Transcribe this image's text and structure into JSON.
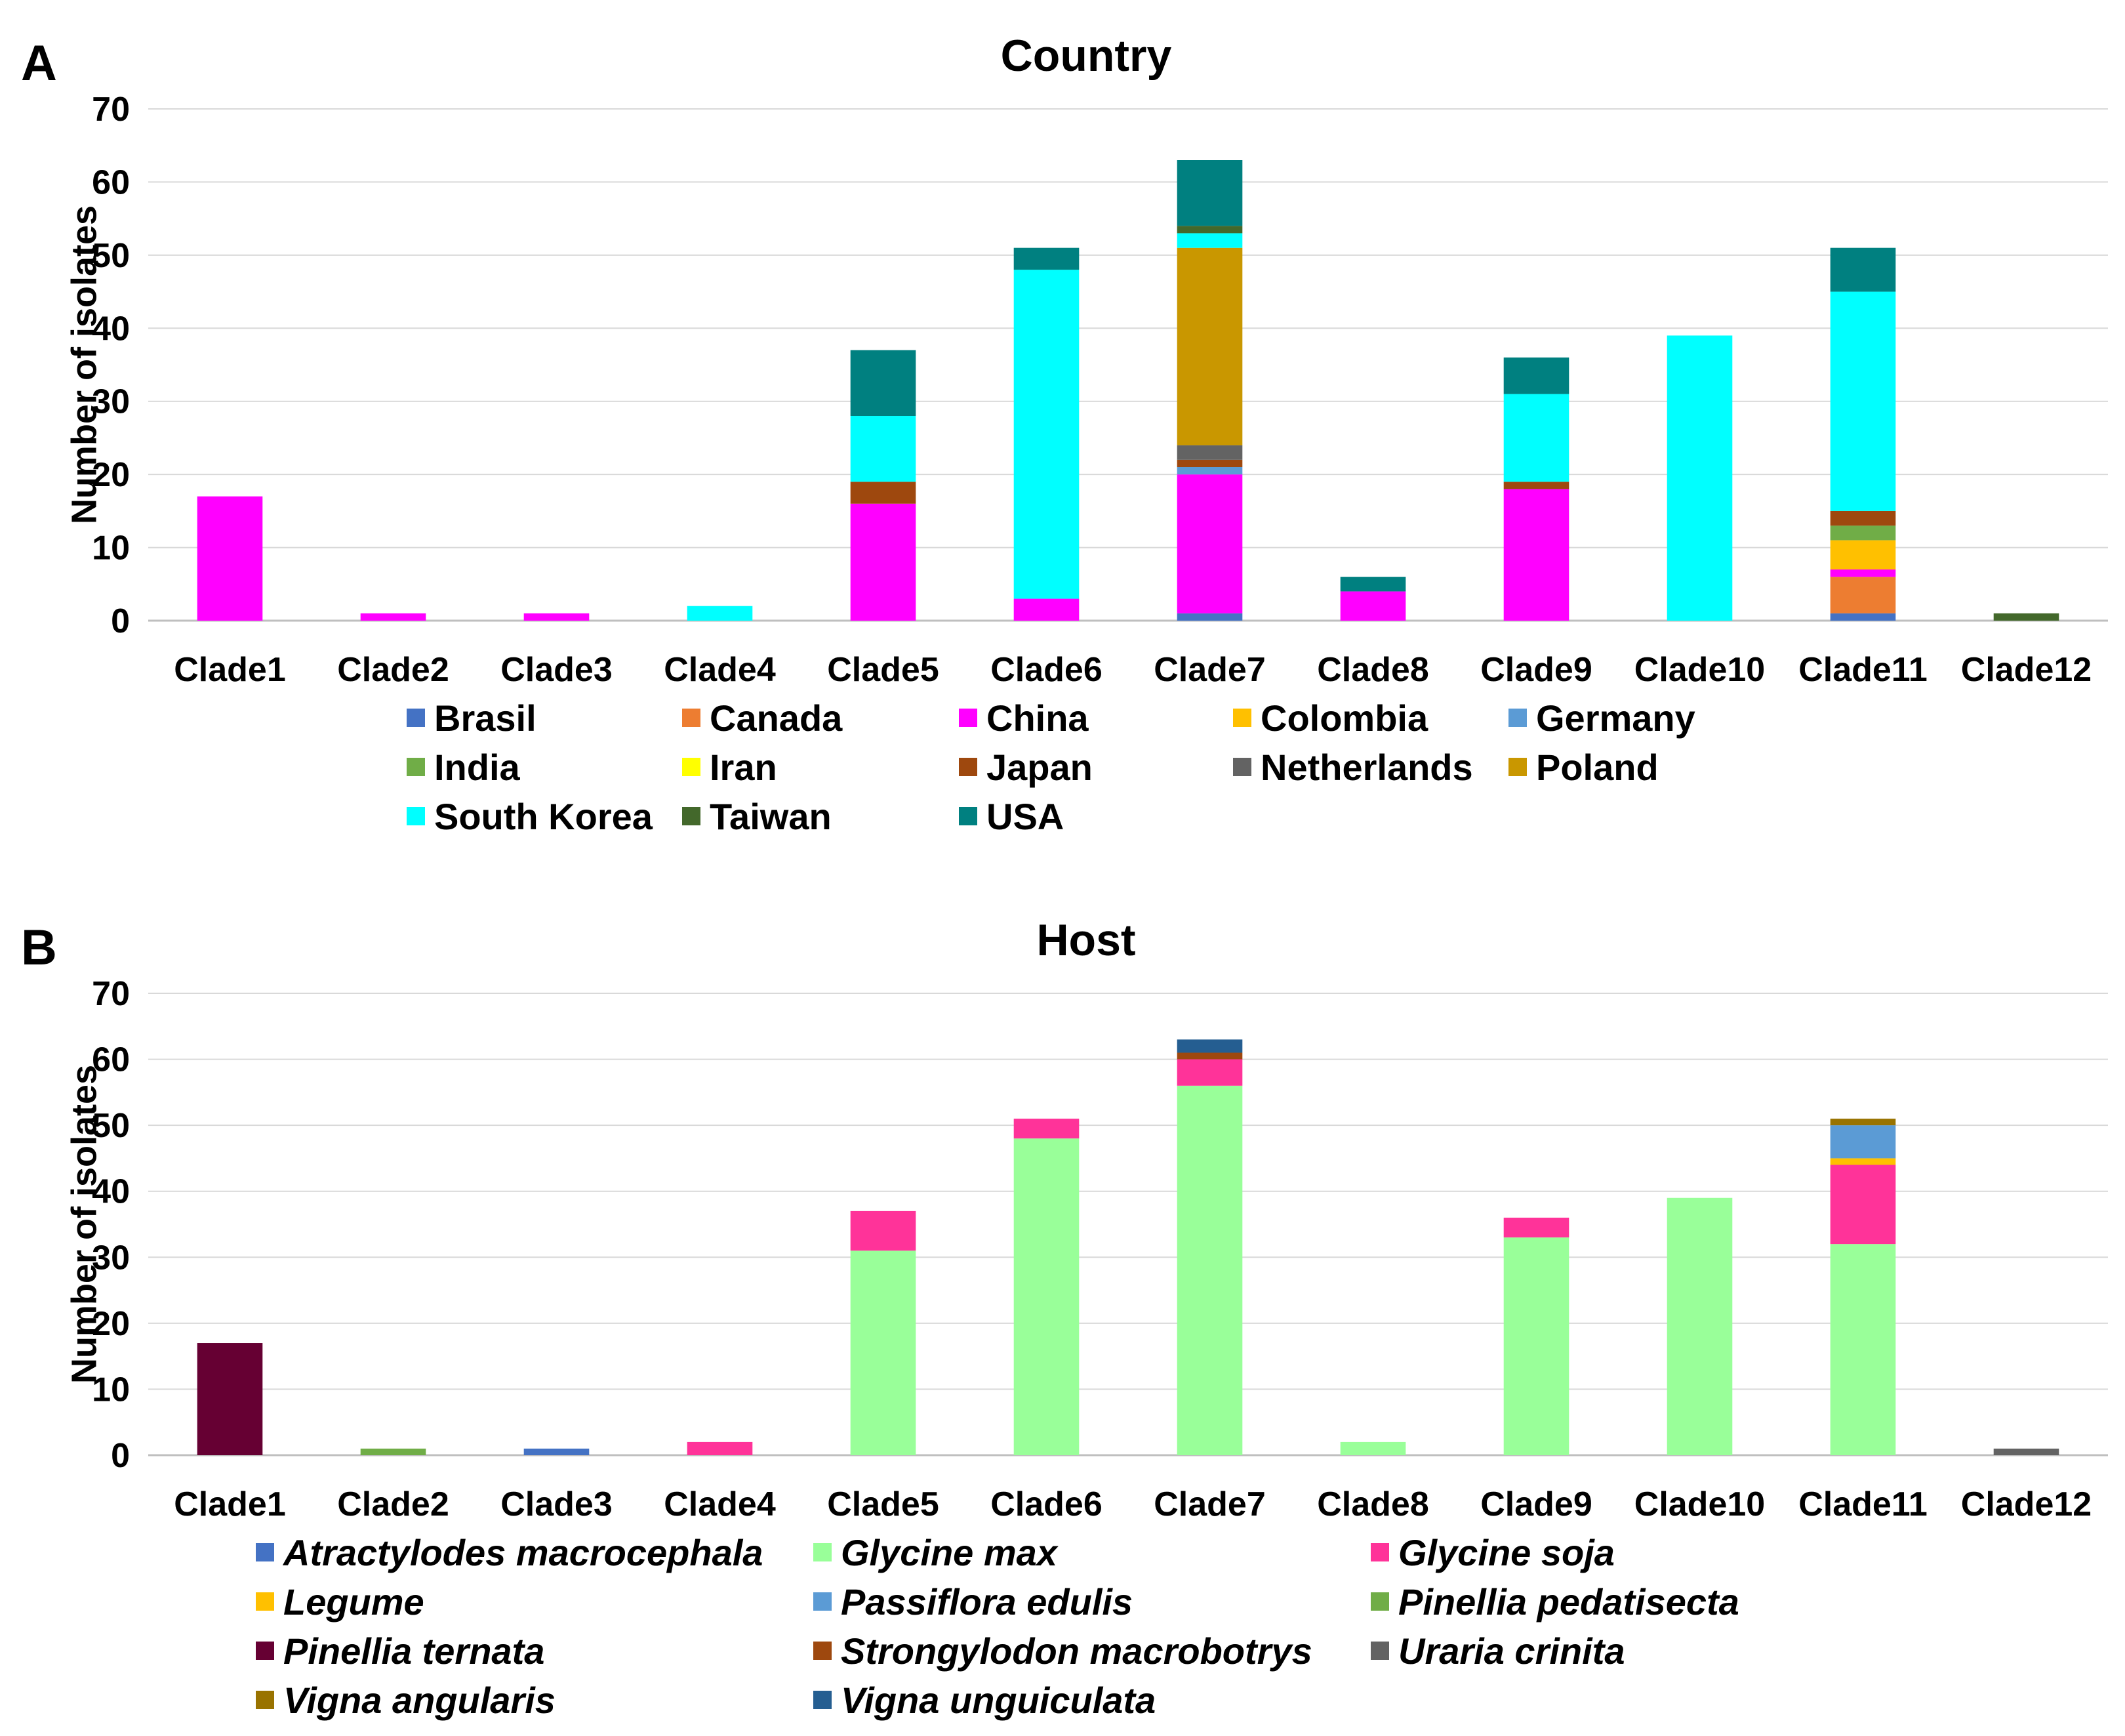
{
  "chart_data": [
    {
      "type": "bar",
      "stacked": true,
      "panel": "A",
      "title": "Country",
      "ylabel": "Number of isolates",
      "xlabel": "",
      "ylim": [
        0,
        70
      ],
      "yticks": [
        0,
        10,
        20,
        30,
        40,
        50,
        60,
        70
      ],
      "grid": true,
      "legend": "bottom",
      "categories": [
        "Clade1",
        "Clade2",
        "Clade3",
        "Clade4",
        "Clade5",
        "Clade6",
        "Clade7",
        "Clade8",
        "Clade9",
        "Clade10",
        "Clade11",
        "Clade12"
      ],
      "series": [
        {
          "name": "Brasil",
          "color": "#4472c4",
          "values": [
            0,
            0,
            0,
            0,
            0,
            0,
            1,
            0,
            0,
            0,
            1,
            0
          ]
        },
        {
          "name": "Canada",
          "color": "#ed7d31",
          "values": [
            0,
            0,
            0,
            0,
            0,
            0,
            0,
            0,
            0,
            0,
            5,
            0
          ]
        },
        {
          "name": "China",
          "color": "#ff00ff",
          "values": [
            17,
            1,
            1,
            0,
            16,
            3,
            19,
            4,
            18,
            0,
            1,
            0
          ]
        },
        {
          "name": "Colombia",
          "color": "#ffc000",
          "values": [
            0,
            0,
            0,
            0,
            0,
            0,
            0,
            0,
            0,
            0,
            4,
            0
          ]
        },
        {
          "name": "Germany",
          "color": "#5b9bd5",
          "values": [
            0,
            0,
            0,
            0,
            0,
            0,
            1,
            0,
            0,
            0,
            0,
            0
          ]
        },
        {
          "name": "India",
          "color": "#70ad47",
          "values": [
            0,
            0,
            0,
            0,
            0,
            0,
            0,
            0,
            0,
            0,
            2,
            0
          ]
        },
        {
          "name": "Iran",
          "color": "#ffff00",
          "values": [
            0,
            0,
            0,
            0,
            0,
            0,
            0,
            0,
            0,
            0,
            0,
            0
          ]
        },
        {
          "name": "Japan",
          "color": "#9e480e",
          "values": [
            0,
            0,
            0,
            0,
            3,
            0,
            1,
            0,
            1,
            0,
            2,
            0
          ]
        },
        {
          "name": "Netherlands",
          "color": "#636363",
          "values": [
            0,
            0,
            0,
            0,
            0,
            0,
            2,
            0,
            0,
            0,
            0,
            0
          ]
        },
        {
          "name": "Poland",
          "color": "#c99700",
          "values": [
            0,
            0,
            0,
            0,
            0,
            0,
            27,
            0,
            0,
            0,
            0,
            0
          ]
        },
        {
          "name": "South Korea",
          "color": "#00ffff",
          "values": [
            0,
            0,
            0,
            2,
            9,
            45,
            2,
            0,
            12,
            39,
            30,
            0
          ]
        },
        {
          "name": "Taiwan",
          "color": "#43682b",
          "values": [
            0,
            0,
            0,
            0,
            0,
            0,
            1,
            0,
            0,
            0,
            0,
            1
          ]
        },
        {
          "name": "USA",
          "color": "#008080",
          "values": [
            0,
            0,
            0,
            0,
            9,
            3,
            9,
            2,
            5,
            0,
            6,
            0
          ]
        }
      ]
    },
    {
      "type": "bar",
      "stacked": true,
      "panel": "B",
      "title": "Host",
      "ylabel": "Number of isolates",
      "xlabel": "",
      "ylim": [
        0,
        70
      ],
      "yticks": [
        0,
        10,
        20,
        30,
        40,
        50,
        60,
        70
      ],
      "grid": true,
      "legend": "bottom",
      "categories": [
        "Clade1",
        "Clade2",
        "Clade3",
        "Clade4",
        "Clade5",
        "Clade6",
        "Clade7",
        "Clade8",
        "Clade9",
        "Clade10",
        "Clade11",
        "Clade12"
      ],
      "series": [
        {
          "name": "Atractylodes macrocephala",
          "color": "#4472c4",
          "values": [
            0,
            0,
            1,
            0,
            0,
            0,
            0,
            0,
            0,
            0,
            0,
            0
          ]
        },
        {
          "name": "Glycine max",
          "color": "#99ff99",
          "values": [
            0,
            0,
            0,
            0,
            31,
            48,
            56,
            2,
            33,
            39,
            32,
            0
          ]
        },
        {
          "name": "Glycine soja",
          "color": "#ff3399",
          "values": [
            0,
            0,
            0,
            2,
            6,
            3,
            4,
            0,
            3,
            0,
            12,
            0
          ]
        },
        {
          "name": "Legume",
          "color": "#ffc000",
          "values": [
            0,
            0,
            0,
            0,
            0,
            0,
            0,
            0,
            0,
            0,
            1,
            0
          ]
        },
        {
          "name": "Passiflora edulis",
          "color": "#5b9bd5",
          "values": [
            0,
            0,
            0,
            0,
            0,
            0,
            0,
            0,
            0,
            0,
            5,
            0
          ]
        },
        {
          "name": "Pinellia pedatisecta",
          "color": "#70ad47",
          "values": [
            0,
            1,
            0,
            0,
            0,
            0,
            0,
            0,
            0,
            0,
            0,
            0
          ]
        },
        {
          "name": "Pinellia ternata",
          "color": "#660033",
          "values": [
            17,
            0,
            0,
            0,
            0,
            0,
            0,
            0,
            0,
            0,
            0,
            0
          ]
        },
        {
          "name": "Strongylodon macrobotrys",
          "color": "#9e480e",
          "values": [
            0,
            0,
            0,
            0,
            0,
            0,
            1,
            0,
            0,
            0,
            0,
            0
          ]
        },
        {
          "name": "Uraria crinita",
          "color": "#636363",
          "values": [
            0,
            0,
            0,
            0,
            0,
            0,
            0,
            0,
            0,
            0,
            0,
            1
          ]
        },
        {
          "name": "Vigna angularis",
          "color": "#997300",
          "values": [
            0,
            0,
            0,
            0,
            0,
            0,
            0,
            0,
            0,
            0,
            1,
            0
          ]
        },
        {
          "name": "Vigna unguiculata",
          "color": "#255e91",
          "values": [
            0,
            0,
            0,
            0,
            0,
            0,
            2,
            0,
            0,
            0,
            0,
            0
          ]
        }
      ]
    }
  ]
}
